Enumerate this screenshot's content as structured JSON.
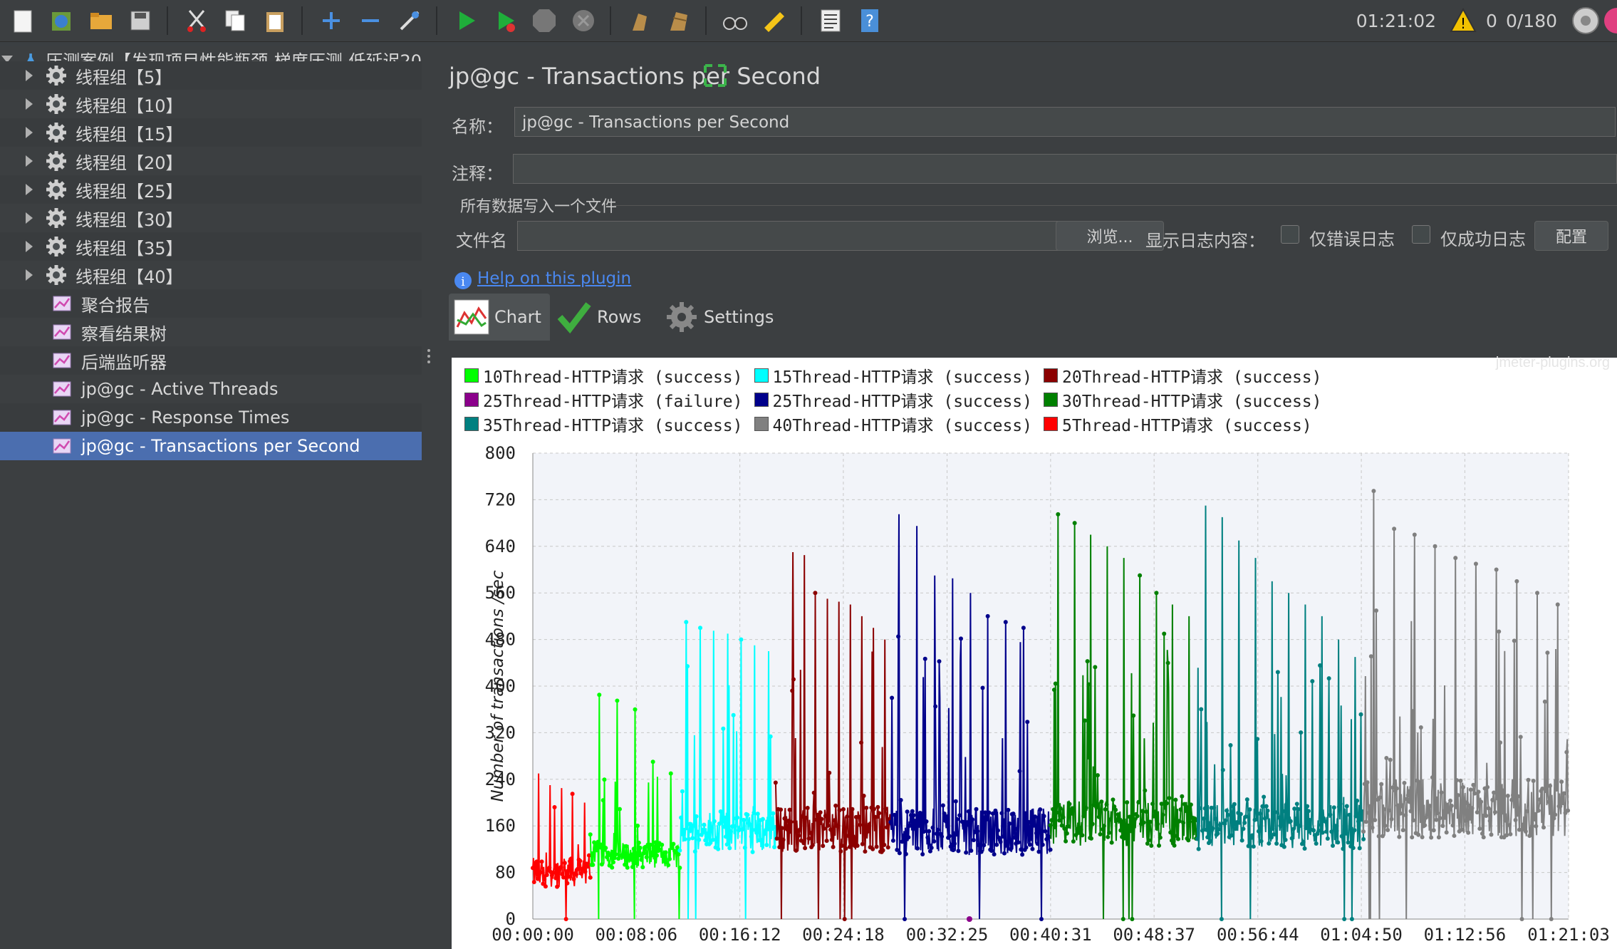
{
  "toolbar": {
    "icons": [
      "new-icon",
      "templates-icon",
      "open-icon",
      "save-icon",
      "cut-icon",
      "copy-icon",
      "paste-icon",
      "expand-icon",
      "collapse-icon",
      "toggle-icon",
      "start-icon",
      "start-no-pause-icon",
      "stop-icon",
      "shutdown-icon",
      "clear-icon",
      "clear-all-icon",
      "search-icon",
      "reset-search-icon",
      "function-helper-icon",
      "help-icon"
    ],
    "elapsed_time": "01:21:02",
    "warning_count": "0",
    "threads": "0/180"
  },
  "tree": {
    "root": "压测案例【发现项目性能瓶颈-梯度压测-低延迟20",
    "items": [
      {
        "label": "线程组【5】",
        "type": "thread-group"
      },
      {
        "label": "线程组【10】",
        "type": "thread-group"
      },
      {
        "label": "线程组【15】",
        "type": "thread-group"
      },
      {
        "label": "线程组【20】",
        "type": "thread-group"
      },
      {
        "label": "线程组【25】",
        "type": "thread-group"
      },
      {
        "label": "线程组【30】",
        "type": "thread-group"
      },
      {
        "label": "线程组【35】",
        "type": "thread-group"
      },
      {
        "label": "线程组【40】",
        "type": "thread-group"
      },
      {
        "label": "聚合报告",
        "type": "listener"
      },
      {
        "label": "察看结果树",
        "type": "listener"
      },
      {
        "label": "后端监听器",
        "type": "listener"
      },
      {
        "label": "jp@gc - Active Threads",
        "type": "listener"
      },
      {
        "label": "jp@gc - Response Times",
        "type": "listener"
      },
      {
        "label": "jp@gc - Transactions per Second",
        "type": "listener",
        "selected": true
      }
    ]
  },
  "panel": {
    "title": "jp@gc - Transactions per Second",
    "name_label": "名称：",
    "name_value": "jp@gc - Transactions per Second",
    "comment_label": "注释：",
    "comment_value": "",
    "file_section": "所有数据写入一个文件",
    "filename_label": "文件名",
    "filename_value": "",
    "browse_button": "浏览...",
    "log_content_label": "显示日志内容：",
    "errors_only": "仅错误日志",
    "success_only": "仅成功日志",
    "configure_button": "配置",
    "help_link": "Help on this plugin",
    "tabs": [
      "Chart",
      "Rows",
      "Settings"
    ]
  },
  "chart_data": {
    "type": "line",
    "watermark": "jmeter-plugins.org",
    "ylabel": "Number of transactions /sec",
    "xlabel": "",
    "ylim": [
      0,
      800
    ],
    "y_ticks": [
      "0",
      "80",
      "160",
      "240",
      "320",
      "400",
      "480",
      "560",
      "640",
      "720",
      "800"
    ],
    "x_ticks": [
      "00:00:00",
      "00:08:06",
      "00:16:12",
      "00:24:18",
      "00:32:25",
      "00:40:31",
      "00:48:37",
      "00:56:44",
      "01:04:50",
      "01:12:56",
      "01:21:03"
    ],
    "legend": [
      {
        "name": "10Thread-HTTP请求 (success)",
        "color": "#00ff00"
      },
      {
        "name": "15Thread-HTTP请求 (success)",
        "color": "#00ffff"
      },
      {
        "name": "20Thread-HTTP请求 (success)",
        "color": "#8b0000"
      },
      {
        "name": "25Thread-HTTP请求 (failure)",
        "color": "#8b008b"
      },
      {
        "name": "25Thread-HTTP请求 (success)",
        "color": "#00008b"
      },
      {
        "name": "30Thread-HTTP请求 (success)",
        "color": "#008000"
      },
      {
        "name": "35Thread-HTTP请求 (success)",
        "color": "#008080"
      },
      {
        "name": "40Thread-HTTP请求 (success)",
        "color": "#808080"
      },
      {
        "name": "5Thread-HTTP请求 (success)",
        "color": "#ff0000"
      }
    ],
    "series": [
      {
        "name": "5Thread-HTTP请求 (success)",
        "color": "#ff0000",
        "start": "00:00:00",
        "end": "00:04:30",
        "baseline": 80,
        "spread": 25,
        "peaks": [
          250,
          230,
          225,
          215,
          200
        ]
      },
      {
        "name": "10Thread-HTTP请求 (success)",
        "color": "#00ff00",
        "start": "00:04:30",
        "end": "00:11:30",
        "baseline": 110,
        "spread": 22,
        "peaks": [
          385,
          375,
          360,
          270,
          250
        ]
      },
      {
        "name": "15Thread-HTTP请求 (success)",
        "color": "#00ffff",
        "start": "00:11:30",
        "end": "00:19:00",
        "baseline": 150,
        "spread": 35,
        "peaks": [
          510,
          500,
          495,
          490,
          480,
          470,
          460
        ]
      },
      {
        "name": "20Thread-HTTP请求 (success)",
        "color": "#8b0000",
        "start": "00:19:00",
        "end": "00:28:00",
        "baseline": 155,
        "spread": 40,
        "peaks": [
          655,
          630,
          625,
          560,
          550,
          545,
          540,
          520,
          500,
          480
        ]
      },
      {
        "name": "25Thread-HTTP请求 (success)",
        "color": "#00008b",
        "start": "00:28:00",
        "end": "00:40:30",
        "baseline": 150,
        "spread": 40,
        "peaks": [
          695,
          675,
          590,
          585,
          560,
          520,
          510,
          500,
          490
        ]
      },
      {
        "name": "25Thread-HTTP请求 (failure)",
        "color": "#8b008b",
        "start": "00:34:10",
        "end": "00:34:10",
        "baseline": 0,
        "spread": 0,
        "peaks": []
      },
      {
        "name": "30Thread-HTTP请求 (success)",
        "color": "#008000",
        "start": "00:40:30",
        "end": "00:52:00",
        "baseline": 165,
        "spread": 40,
        "peaks": [
          695,
          680,
          660,
          640,
          620,
          590,
          560,
          540,
          520
        ]
      },
      {
        "name": "35Thread-HTTP请求 (success)",
        "color": "#008080",
        "start": "00:52:00",
        "end": "01:05:00",
        "baseline": 160,
        "spread": 40,
        "peaks": [
          710,
          690,
          650,
          620,
          580,
          560,
          540,
          520,
          480,
          450
        ]
      },
      {
        "name": "40Thread-HTTP请求 (success)",
        "color": "#808080",
        "start": "01:05:00",
        "end": "01:21:00",
        "baseline": 190,
        "spread": 50,
        "peaks": [
          735,
          670,
          660,
          640,
          620,
          610,
          600,
          580,
          560,
          540
        ]
      }
    ]
  }
}
